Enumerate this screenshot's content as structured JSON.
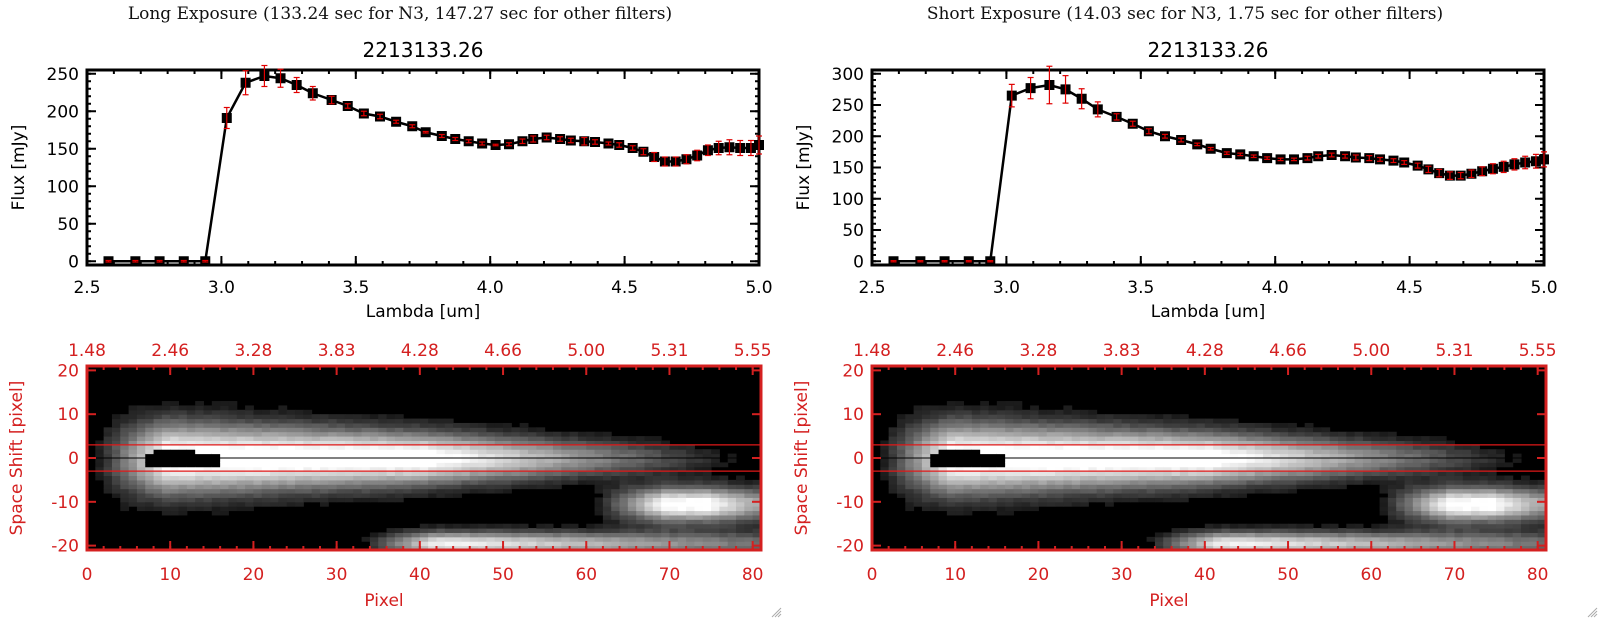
{
  "panels": [
    {
      "id": "long",
      "title": "Long Exposure (133.24 sec for N3, 147.27 sec for other filters)",
      "object_id": "2213133.26"
    },
    {
      "id": "short",
      "title": "Short Exposure (14.03 sec for N3, 1.75 sec for other filters)",
      "object_id": "2213133.26"
    }
  ],
  "chart_data": [
    {
      "type": "line",
      "name": "long-exposure-spectrum",
      "title": "2213133.26",
      "xlabel": "Lambda [um]",
      "ylabel": "Flux [mJy]",
      "xlim": [
        2.5,
        5.0
      ],
      "ylim": [
        -5,
        255
      ],
      "xticks": [
        2.5,
        3.0,
        3.5,
        4.0,
        4.5,
        5.0
      ],
      "xtick_labels": [
        "2.5",
        "3.0",
        "3.5",
        "4.0",
        "4.5",
        "5.0"
      ],
      "yticks": [
        0,
        50,
        100,
        150,
        200,
        250
      ],
      "ytick_labels": [
        "0",
        "50",
        "100",
        "150",
        "200",
        "250"
      ],
      "line_color": "#000000",
      "errorbar_color": "#e00000",
      "x": [
        2.58,
        2.68,
        2.77,
        2.86,
        2.94,
        3.02,
        3.09,
        3.16,
        3.22,
        3.28,
        3.34,
        3.41,
        3.47,
        3.53,
        3.59,
        3.65,
        3.71,
        3.76,
        3.82,
        3.87,
        3.92,
        3.97,
        4.02,
        4.07,
        4.12,
        4.16,
        4.21,
        4.26,
        4.3,
        4.35,
        4.39,
        4.44,
        4.48,
        4.53,
        4.57,
        4.61,
        4.65,
        4.69,
        4.73,
        4.77,
        4.81,
        4.85,
        4.89,
        4.93,
        4.97,
        5.0
      ],
      "y": [
        0,
        0,
        0,
        0,
        0,
        191,
        238,
        247,
        244,
        235,
        224,
        215,
        207,
        197,
        193,
        186,
        180,
        172,
        167,
        163,
        160,
        157,
        155,
        156,
        160,
        163,
        165,
        163,
        161,
        160,
        159,
        157,
        155,
        151,
        146,
        139,
        133,
        133,
        136,
        141,
        148,
        151,
        152,
        151,
        151,
        155
      ],
      "yerr": [
        1,
        1,
        1,
        1,
        1,
        14,
        16,
        14,
        12,
        10,
        9,
        5,
        3,
        3,
        3,
        2,
        2,
        1,
        2,
        2,
        2,
        2,
        1,
        2,
        3,
        4,
        3,
        3,
        3,
        5,
        3,
        2,
        3,
        3,
        4,
        6,
        6,
        6,
        6,
        7,
        7,
        9,
        10,
        10,
        10,
        12
      ]
    },
    {
      "type": "heatmap",
      "name": "long-exposure-2d-spectrum",
      "xlabel": "Pixel",
      "ylabel": "Space Shift [pixel]",
      "xlim": [
        0,
        81
      ],
      "ylim": [
        -21,
        21
      ],
      "xticks": [
        0,
        10,
        20,
        30,
        40,
        50,
        60,
        70,
        80
      ],
      "xtick_labels": [
        "0",
        "10",
        "20",
        "30",
        "40",
        "50",
        "60",
        "70",
        "80"
      ],
      "yticks": [
        -20,
        -10,
        0,
        10,
        20
      ],
      "ytick_labels": [
        "-20",
        "-10",
        "0",
        "10",
        "20"
      ],
      "top_xtick_labels": [
        "1.48",
        "2.46",
        "3.28",
        "3.83",
        "4.28",
        "4.66",
        "5.00",
        "5.31",
        "5.55"
      ],
      "axis_color": "#d42020",
      "aperture_lines": [
        -3,
        3
      ],
      "center_line": 0,
      "sources": [
        {
          "x0": 6,
          "x1": 78,
          "y": 0,
          "width_start": 6,
          "width_end": 2.2,
          "peak": 1.0,
          "fade_start": 40,
          "fade_end": 80
        },
        {
          "x0": 66,
          "x1": 81,
          "y": -10.5,
          "width_start": 2.8,
          "width_end": 2.8,
          "peak": 0.95,
          "fade_start": 74,
          "fade_end": 90
        },
        {
          "x0": 38,
          "x1": 81,
          "y": -19.5,
          "width_start": 2.0,
          "width_end": 2.0,
          "peak": 0.85,
          "fade_start": 45,
          "fade_end": 110
        }
      ],
      "saturated_region": {
        "x0": 7,
        "x1": 15,
        "y0": -2,
        "y1": 2
      }
    },
    {
      "type": "line",
      "name": "short-exposure-spectrum",
      "title": "2213133.26",
      "xlabel": "Lambda [um]",
      "ylabel": "Flux [mJy]",
      "xlim": [
        2.5,
        5.0
      ],
      "ylim": [
        -6,
        306
      ],
      "xticks": [
        2.5,
        3.0,
        3.5,
        4.0,
        4.5,
        5.0
      ],
      "xtick_labels": [
        "2.5",
        "3.0",
        "3.5",
        "4.0",
        "4.5",
        "5.0"
      ],
      "yticks": [
        0,
        50,
        100,
        150,
        200,
        250,
        300
      ],
      "ytick_labels": [
        "0",
        "50",
        "100",
        "150",
        "200",
        "250",
        "300"
      ],
      "line_color": "#000000",
      "errorbar_color": "#e00000",
      "x": [
        2.58,
        2.68,
        2.77,
        2.86,
        2.94,
        3.02,
        3.09,
        3.16,
        3.22,
        3.28,
        3.34,
        3.41,
        3.47,
        3.53,
        3.59,
        3.65,
        3.71,
        3.76,
        3.82,
        3.87,
        3.92,
        3.97,
        4.02,
        4.07,
        4.12,
        4.16,
        4.21,
        4.26,
        4.3,
        4.35,
        4.39,
        4.44,
        4.48,
        4.53,
        4.57,
        4.61,
        4.65,
        4.69,
        4.73,
        4.77,
        4.81,
        4.85,
        4.89,
        4.93,
        4.97,
        5.0
      ],
      "y": [
        0,
        0,
        0,
        0,
        0,
        265,
        277,
        282,
        275,
        260,
        243,
        231,
        220,
        208,
        200,
        194,
        187,
        180,
        173,
        171,
        168,
        165,
        163,
        163,
        165,
        168,
        170,
        168,
        166,
        165,
        163,
        161,
        158,
        153,
        147,
        141,
        137,
        137,
        140,
        144,
        148,
        151,
        155,
        158,
        160,
        163
      ],
      "yerr": [
        1,
        1,
        1,
        1,
        1,
        18,
        17,
        30,
        22,
        16,
        12,
        5,
        4,
        4,
        3,
        3,
        2,
        2,
        2,
        2,
        2,
        2,
        2,
        2,
        3,
        3,
        3,
        3,
        4,
        4,
        3,
        3,
        3,
        4,
        5,
        6,
        6,
        5,
        6,
        7,
        8,
        9,
        9,
        10,
        11,
        12
      ]
    },
    {
      "type": "heatmap",
      "name": "short-exposure-2d-spectrum",
      "xlabel": "Pixel",
      "ylabel": "Space Shift [pixel]",
      "xlim": [
        0,
        81
      ],
      "ylim": [
        -21,
        21
      ],
      "xticks": [
        0,
        10,
        20,
        30,
        40,
        50,
        60,
        70,
        80
      ],
      "xtick_labels": [
        "0",
        "10",
        "20",
        "30",
        "40",
        "50",
        "60",
        "70",
        "80"
      ],
      "yticks": [
        -20,
        -10,
        0,
        10,
        20
      ],
      "ytick_labels": [
        "-20",
        "-10",
        "0",
        "10",
        "20"
      ],
      "top_xtick_labels": [
        "1.48",
        "2.46",
        "3.28",
        "3.83",
        "4.28",
        "4.66",
        "5.00",
        "5.31",
        "5.55"
      ],
      "axis_color": "#d42020",
      "aperture_lines": [
        -3,
        3
      ],
      "center_line": 0,
      "sources": [
        {
          "x0": 6,
          "x1": 78,
          "y": 0,
          "width_start": 6,
          "width_end": 2.2,
          "peak": 1.0,
          "fade_start": 40,
          "fade_end": 80
        },
        {
          "x0": 66,
          "x1": 81,
          "y": -10.5,
          "width_start": 2.8,
          "width_end": 2.8,
          "peak": 0.95,
          "fade_start": 74,
          "fade_end": 90
        },
        {
          "x0": 38,
          "x1": 81,
          "y": -19.5,
          "width_start": 2.0,
          "width_end": 2.0,
          "peak": 0.85,
          "fade_start": 45,
          "fade_end": 110
        }
      ],
      "saturated_region": {
        "x0": 7,
        "x1": 15,
        "y0": -2,
        "y1": 2
      }
    }
  ]
}
